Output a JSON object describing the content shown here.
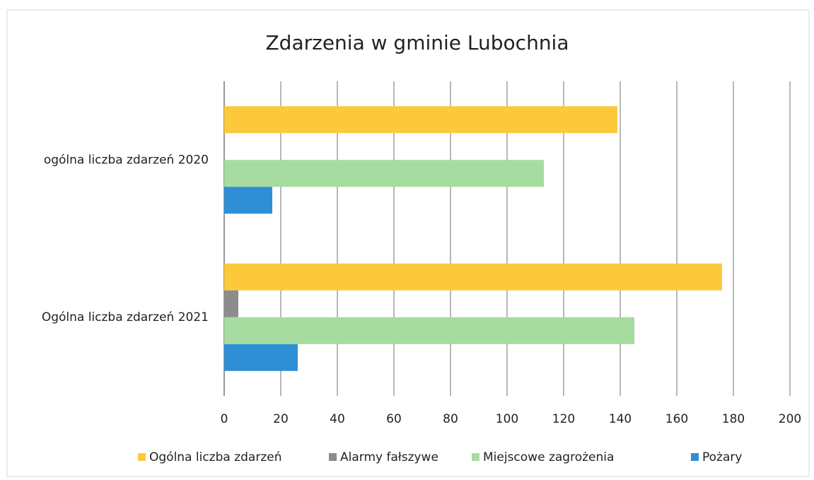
{
  "chart_data": {
    "type": "bar",
    "orientation": "horizontal",
    "title": "Zdarzenia w gminie Lubochnia",
    "categories": [
      "ogólna liczba zdarzeń 2020",
      "Ogólna liczba zdarzeń 2021"
    ],
    "series": [
      {
        "name": "Ogólna liczba zdarzeń",
        "color": "#fcc93a",
        "values": [
          139,
          176
        ]
      },
      {
        "name": "Alarmy fałszywe",
        "color": "#8c8c8c",
        "values": [
          0,
          5
        ]
      },
      {
        "name": "Miejscowe zagrożenia",
        "color": "#a6dca0",
        "values": [
          113,
          145
        ]
      },
      {
        "name": "Pożary",
        "color": "#2f8fd6",
        "values": [
          17,
          26
        ]
      }
    ],
    "xlim": [
      0,
      200
    ],
    "xticks": [
      0,
      20,
      40,
      60,
      80,
      100,
      120,
      140,
      160,
      180,
      200
    ],
    "grid": true,
    "legend": "bottom"
  }
}
